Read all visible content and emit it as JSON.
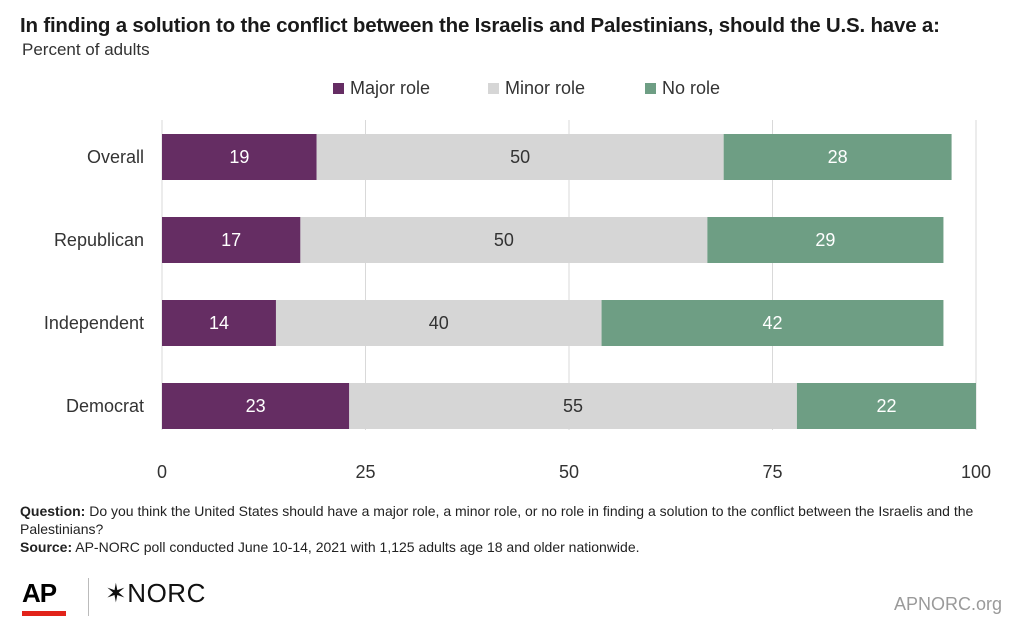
{
  "header": {
    "title": "In finding a solution to the conflict between the Israelis and Palestinians, should the U.S. have a:",
    "subtitle": "Percent of adults"
  },
  "colors": {
    "major": "#652d63",
    "minor": "#d6d6d6",
    "none": "#6e9e84",
    "gridline": "#d9d9d9"
  },
  "chart_data": {
    "type": "bar",
    "orientation": "horizontal",
    "stacked": true,
    "title": "In finding a solution to the conflict between the Israelis and Palestinians, should the U.S. have a:",
    "subtitle": "Percent of adults",
    "categories": [
      "Overall",
      "Republican",
      "Independent",
      "Democrat"
    ],
    "series": [
      {
        "name": "Major role",
        "values": [
          19,
          17,
          14,
          23
        ]
      },
      {
        "name": "Minor role",
        "values": [
          50,
          50,
          40,
          55
        ]
      },
      {
        "name": "No role",
        "values": [
          28,
          29,
          42,
          22
        ]
      }
    ],
    "xlim": [
      0,
      100
    ],
    "xticks": [
      0,
      25,
      50,
      75,
      100
    ],
    "xlabel": "",
    "ylabel": "",
    "grid": true,
    "legend_position": "top-center",
    "data_labels": true
  },
  "footnote": {
    "question_label": "Question:",
    "question_text": "Do you think the United States should have a major role, a minor role, or no role in finding a solution to the conflict between the Israelis and the Palestinians?",
    "source_label": "Source:",
    "source_text": "AP-NORC poll conducted June 10-14, 2021 with 1,125 adults age 18 and older nationwide."
  },
  "branding": {
    "ap_logo": "AP",
    "norc_logo": "NORC",
    "norc_star": "✶",
    "site": "APNORC.org"
  }
}
